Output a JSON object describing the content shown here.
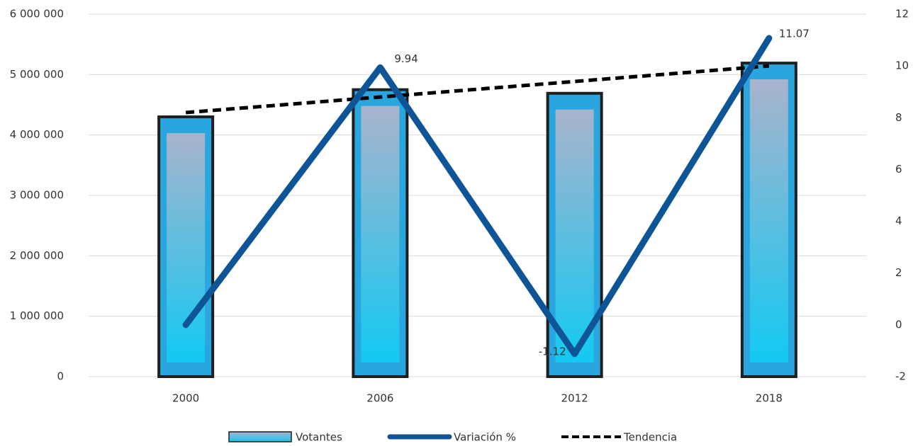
{
  "chart_data": {
    "type": "bar",
    "categories": [
      "2000",
      "2006",
      "2012",
      "2018"
    ],
    "series": [
      {
        "name": "Votantes",
        "type": "bar",
        "axis": "left",
        "values": [
          4300000,
          4750000,
          4690000,
          5190000
        ]
      },
      {
        "name": "Variación %",
        "type": "line",
        "axis": "right",
        "values": [
          0,
          9.94,
          -1.12,
          11.07
        ]
      },
      {
        "name": "Tendencia",
        "type": "line",
        "style": "dashed",
        "axis": "right",
        "values": [
          8.2,
          8.8,
          9.4,
          10
        ]
      }
    ],
    "data_labels": [
      {
        "series": "Variación %",
        "category": "2006",
        "text": "9.94"
      },
      {
        "series": "Variación %",
        "category": "2012",
        "text": "-1.12"
      },
      {
        "series": "Variación %",
        "category": "2018",
        "text": "11.07"
      }
    ],
    "left_axis": {
      "ylim": [
        0,
        6000000
      ],
      "ticks": [
        0,
        1000000,
        2000000,
        3000000,
        4000000,
        5000000,
        6000000
      ],
      "tick_labels": [
        "0",
        "1 000 000",
        "2 000 000",
        "3 000 000",
        "4 000 000",
        "5 000 000",
        "6 000 000"
      ]
    },
    "right_axis": {
      "ylim": [
        -2,
        12
      ],
      "ticks": [
        -2,
        0,
        2,
        4,
        6,
        8,
        10,
        12
      ],
      "tick_labels": [
        "-2",
        "0",
        "2",
        "4",
        "6",
        "8",
        "10",
        "12"
      ]
    },
    "grid": true,
    "legend": {
      "position": "bottom",
      "entries": [
        "Votantes",
        "Variación %",
        "Tendencia"
      ]
    },
    "colors": {
      "line": "#0d5597",
      "bar_top": "#a9b3cc",
      "bar_bottom": "#12c9f2",
      "bar_border": "#1f1f1f",
      "trend": "#000000",
      "grid": "#d9d9d9"
    }
  }
}
